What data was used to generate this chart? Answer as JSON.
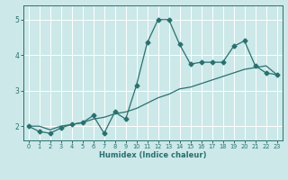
{
  "title": "",
  "xlabel": "Humidex (Indice chaleur)",
  "ylabel": "",
  "background_color": "#cce8e8",
  "line_color": "#2a7070",
  "grid_color": "#ffffff",
  "xlim": [
    -0.5,
    23.5
  ],
  "ylim": [
    1.6,
    5.4
  ],
  "yticks": [
    2,
    3,
    4,
    5
  ],
  "xticks": [
    0,
    1,
    2,
    3,
    4,
    5,
    6,
    7,
    8,
    9,
    10,
    11,
    12,
    13,
    14,
    15,
    16,
    17,
    18,
    19,
    20,
    21,
    22,
    23
  ],
  "x_data": [
    0,
    1,
    2,
    3,
    4,
    5,
    6,
    7,
    8,
    9,
    10,
    11,
    12,
    13,
    14,
    15,
    16,
    17,
    18,
    19,
    20,
    21,
    22,
    23
  ],
  "y_jagged": [
    2.0,
    1.85,
    1.8,
    1.95,
    2.05,
    2.1,
    2.3,
    1.8,
    2.4,
    2.2,
    3.15,
    4.35,
    5.0,
    5.0,
    4.3,
    3.75,
    3.8,
    3.8,
    3.8,
    4.25,
    4.4,
    3.7,
    3.5,
    3.45
  ],
  "y_trend": [
    2.0,
    2.0,
    1.9,
    2.0,
    2.05,
    2.1,
    2.2,
    2.25,
    2.35,
    2.4,
    2.5,
    2.65,
    2.8,
    2.9,
    3.05,
    3.1,
    3.2,
    3.3,
    3.4,
    3.5,
    3.6,
    3.65,
    3.7,
    3.45
  ],
  "marker": "D",
  "marker_size": 2.5,
  "linewidth": 0.9
}
